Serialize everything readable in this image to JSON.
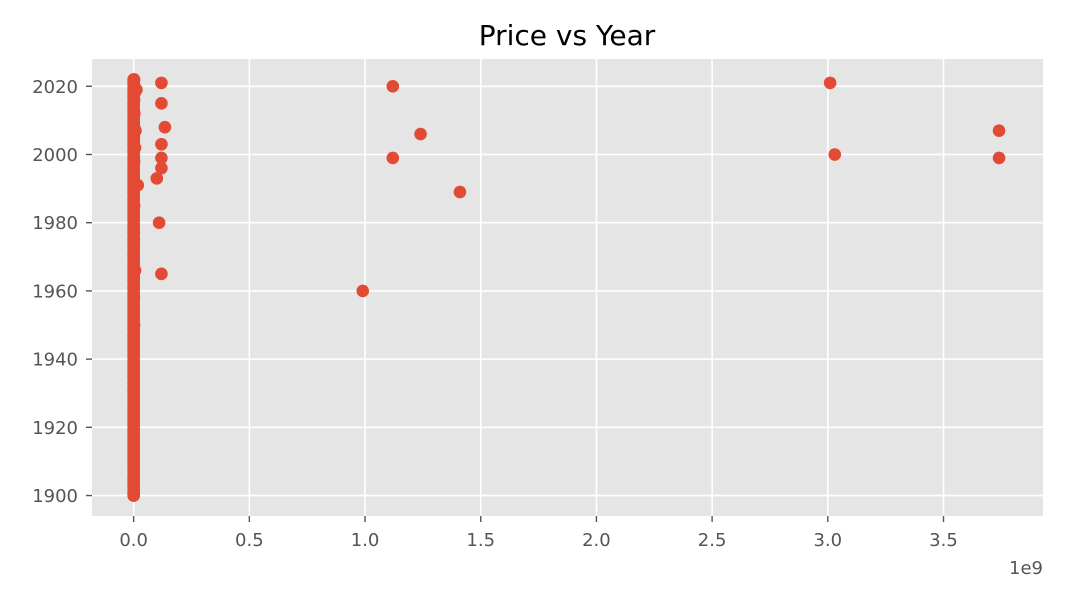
{
  "chart_data": {
    "type": "scatter",
    "title": "Price vs Year",
    "xlabel": "",
    "ylabel": "",
    "x_offset_label": "1e9",
    "x_ticks": [
      "0.0",
      "0.5",
      "1.0",
      "1.5",
      "2.0",
      "2.5",
      "3.0",
      "3.5"
    ],
    "x_tick_values": [
      0.0,
      0.5,
      1.0,
      1.5,
      2.0,
      2.5,
      3.0,
      3.5
    ],
    "y_ticks": [
      "1900",
      "1920",
      "1940",
      "1960",
      "1980",
      "2000",
      "2020"
    ],
    "y_tick_values": [
      1900,
      1920,
      1940,
      1960,
      1980,
      2000,
      2020
    ],
    "xlim": [
      -0.18,
      3.93
    ],
    "ylim": [
      1894,
      2028
    ],
    "grid": true,
    "style": "ggplot",
    "colors": {
      "background": "#E5E5E5",
      "grid": "#FFFFFF",
      "marker": "#E24A33"
    },
    "series": [
      {
        "points": [
          [
            0.0,
            1900
          ],
          [
            0.0,
            1901
          ],
          [
            0.0,
            1903
          ],
          [
            0.0,
            1905
          ],
          [
            0.0,
            1909
          ],
          [
            0.0,
            1910
          ],
          [
            0.0,
            1913
          ],
          [
            0.0,
            1915
          ],
          [
            0.0,
            1917
          ],
          [
            0.0,
            1919
          ],
          [
            0.0,
            1921
          ],
          [
            0.0,
            1923
          ],
          [
            0.0,
            1925
          ],
          [
            0.0,
            1927
          ],
          [
            0.0,
            1929
          ],
          [
            0.0,
            1931
          ],
          [
            0.0,
            1933
          ],
          [
            0.0,
            1935
          ],
          [
            0.0,
            1937
          ],
          [
            0.0,
            1939
          ],
          [
            0.0,
            1941
          ],
          [
            0.0,
            1943
          ],
          [
            0.0,
            1945
          ],
          [
            0.0,
            1947
          ],
          [
            0.0,
            1949
          ],
          [
            0.0,
            1951
          ],
          [
            0.0,
            1953
          ],
          [
            0.0,
            1955
          ],
          [
            0.0,
            1957
          ],
          [
            0.0,
            1959
          ],
          [
            0.0,
            1961
          ],
          [
            0.0,
            1963
          ],
          [
            0.0,
            1965
          ],
          [
            0.0,
            1967
          ],
          [
            0.0,
            1969
          ],
          [
            0.0,
            1971
          ],
          [
            0.0,
            1973
          ],
          [
            0.0,
            1975
          ],
          [
            0.0,
            1977
          ],
          [
            0.0,
            1979
          ],
          [
            0.0,
            1981
          ],
          [
            0.0,
            1983
          ],
          [
            0.0,
            1985
          ],
          [
            0.0,
            1987
          ],
          [
            0.0,
            1989
          ],
          [
            0.0,
            1991
          ],
          [
            0.0,
            1993
          ],
          [
            0.0,
            1995
          ],
          [
            0.0,
            1997
          ],
          [
            0.0,
            1999
          ],
          [
            0.0,
            2001
          ],
          [
            0.0,
            2003
          ],
          [
            0.0,
            2005
          ],
          [
            0.0,
            2007
          ],
          [
            0.0,
            2009
          ],
          [
            0.0,
            2011
          ],
          [
            0.0,
            2013
          ],
          [
            0.0,
            2015
          ],
          [
            0.0,
            2017
          ],
          [
            0.0,
            2019
          ],
          [
            0.0,
            2021
          ],
          [
            0.0,
            2022
          ],
          [
            0.002,
            2022
          ],
          [
            0.003,
            2020
          ],
          [
            0.004,
            2018
          ],
          [
            0.002,
            2016
          ],
          [
            0.003,
            2012
          ],
          [
            0.002,
            2008
          ],
          [
            0.001,
            2004
          ],
          [
            0.002,
            1998
          ],
          [
            0.001,
            1992
          ],
          [
            0.002,
            1985
          ],
          [
            0.001,
            1975
          ],
          [
            0.002,
            1966
          ],
          [
            0.001,
            1958
          ],
          [
            0.002,
            1950
          ],
          [
            0.012,
            2019
          ],
          [
            0.008,
            2007
          ],
          [
            0.006,
            2002
          ],
          [
            0.018,
            1991
          ],
          [
            0.006,
            1966
          ],
          [
            0.12,
            2021
          ],
          [
            0.12,
            2015
          ],
          [
            0.135,
            2008
          ],
          [
            0.12,
            2003
          ],
          [
            0.12,
            1999
          ],
          [
            0.12,
            1996
          ],
          [
            0.1,
            1993
          ],
          [
            0.11,
            1980
          ],
          [
            0.12,
            1965
          ],
          [
            1.12,
            2020
          ],
          [
            1.12,
            1999
          ],
          [
            1.24,
            2006
          ],
          [
            1.41,
            1989
          ],
          [
            0.99,
            1960
          ],
          [
            3.01,
            2021
          ],
          [
            3.03,
            2000
          ],
          [
            3.74,
            2007
          ],
          [
            3.74,
            1999
          ]
        ]
      }
    ]
  }
}
